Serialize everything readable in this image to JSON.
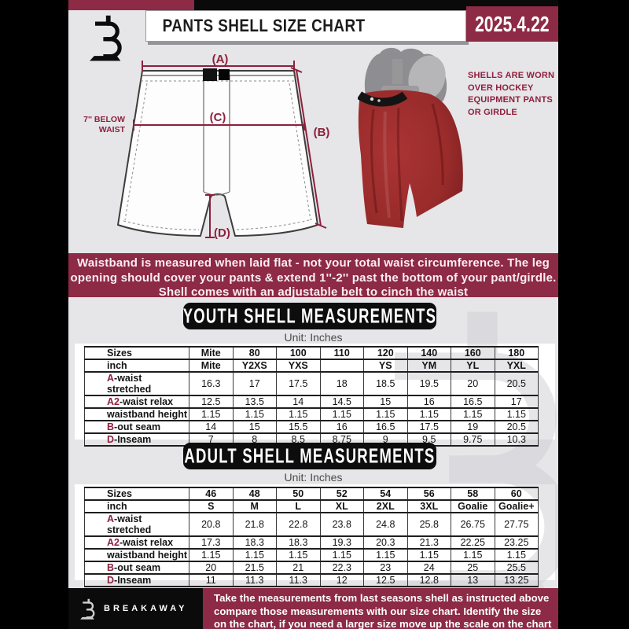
{
  "header": {
    "title": "PANTS SHELL SIZE CHART",
    "date": "2025.4.22"
  },
  "figure": {
    "label_a": "(A)",
    "label_b": "(B)",
    "label_c": "(C)",
    "label_d": "(D)",
    "below_waist": "7'' BELOW\nWAIST",
    "caption": "SHELLS ARE WORN\nOVER HOCKEY\nEQUIPMENT PANTS\nOR GIRDLE"
  },
  "notice": "Waistband is measured when laid flat - not your total waist circumference. The leg\nopening should cover your pants & extend 1''-2'' past the bottom of your pant/girdle.\nShell comes with an adjustable belt to cinch the waist",
  "youth": {
    "heading": "YOUTH SHELL MEASUREMENTS",
    "unit": "Unit: Inches"
  },
  "adult": {
    "heading": "ADULT SHELL MEASUREMENTS",
    "unit": "Unit: Inches"
  },
  "tables": {
    "youth": {
      "rows": [
        {
          "prefix": "",
          "label": "Sizes",
          "bold": true,
          "values": [
            "Mite",
            "80",
            "100",
            "110",
            "120",
            "140",
            "160",
            "180"
          ]
        },
        {
          "prefix": "",
          "label": "inch",
          "bold": true,
          "values": [
            "Mite",
            "Y2XS",
            "YXS",
            "",
            "YS",
            "YM",
            "YL",
            "YXL"
          ]
        },
        {
          "prefix": "A",
          "label": "-waist stretched",
          "values": [
            "16.3",
            "17",
            "17.5",
            "18",
            "18.5",
            "19.5",
            "20",
            "20.5"
          ]
        },
        {
          "prefix": "A2",
          "label": "-waist relax",
          "values": [
            "12.5",
            "13.5",
            "14",
            "14.5",
            "15",
            "16",
            "16.5",
            "17"
          ]
        },
        {
          "prefix": "",
          "label": "waistband height",
          "values": [
            "1.15",
            "1.15",
            "1.15",
            "1.15",
            "1.15",
            "1.15",
            "1.15",
            "1.15"
          ]
        },
        {
          "prefix": "B",
          "label": "-out seam",
          "values": [
            "14",
            "15",
            "15.5",
            "16",
            "16.5",
            "17.5",
            "19",
            "20.5"
          ]
        },
        {
          "prefix": "D",
          "label": "-Inseam",
          "values": [
            "7",
            "8",
            "8.5",
            "8.75",
            "9",
            "9.5",
            "9.75",
            "10.3"
          ]
        }
      ]
    },
    "adult": {
      "rows": [
        {
          "prefix": "",
          "label": "Sizes",
          "bold": true,
          "values": [
            "46",
            "48",
            "50",
            "52",
            "54",
            "56",
            "58",
            "60"
          ]
        },
        {
          "prefix": "",
          "label": "inch",
          "bold": true,
          "values": [
            "S",
            "M",
            "L",
            "XL",
            "2XL",
            "3XL",
            "Goalie",
            "Goalie+"
          ]
        },
        {
          "prefix": "A",
          "label": "-waist stretched",
          "values": [
            "20.8",
            "21.8",
            "22.8",
            "23.8",
            "24.8",
            "25.8",
            "26.75",
            "27.75"
          ]
        },
        {
          "prefix": "A2",
          "label": "-waist relax",
          "values": [
            "17.3",
            "18.3",
            "18.3",
            "19.3",
            "20.3",
            "21.3",
            "22.25",
            "23.25"
          ]
        },
        {
          "prefix": "",
          "label": "waistband height",
          "values": [
            "1.15",
            "1.15",
            "1.15",
            "1.15",
            "1.15",
            "1.15",
            "1.15",
            "1.15"
          ]
        },
        {
          "prefix": "B",
          "label": "-out seam",
          "values": [
            "20",
            "21.5",
            "21",
            "22.3",
            "23",
            "24",
            "25",
            "25.5"
          ]
        },
        {
          "prefix": "D",
          "label": "-Inseam",
          "values": [
            "11",
            "11.3",
            "11.3",
            "12",
            "12.5",
            "12.8",
            "13",
            "13.25"
          ]
        }
      ]
    }
  },
  "footer": {
    "brand": "BREAKAWAY",
    "note": "Take the measurements from last seasons shell as instructed above\ncompare those measurements with our size chart. Identify the size\non the chart, if you need a larger size move up the scale on the chart"
  },
  "colors": {
    "maroon": "#8d2a45",
    "diagram_maroon": "#8e203c",
    "black": "#0b0b0b",
    "doc_bg": "#e6e5e8",
    "shell_red": "#9e2d2d",
    "table_line": "#2f2f2f"
  }
}
